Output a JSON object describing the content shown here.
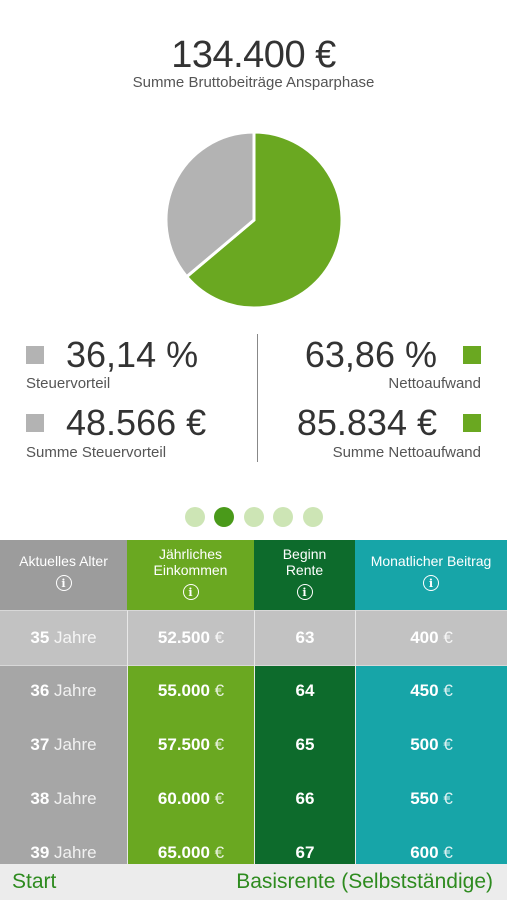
{
  "summary": {
    "total": "134.400 €",
    "total_caption": "Summe Bruttobeiträge Ansparphase"
  },
  "pie": {
    "slices": [
      {
        "label": "Steuervorteil",
        "percent": 36.14,
        "color": "#b3b3b3"
      },
      {
        "label": "Nettoaufwand",
        "percent": 63.86,
        "color": "#6aa821"
      }
    ]
  },
  "stats": {
    "left": {
      "percent": "36,14 %",
      "percent_label": "Steuervorteil",
      "amount": "48.566 €",
      "amount_label": "Summe Steuervorteil",
      "color": "#b3b3b3"
    },
    "right": {
      "percent": "63,86 %",
      "percent_label": "Nettoaufwand",
      "amount": "85.834 €",
      "amount_label": "Summe Nettoaufwand",
      "color": "#6aa821"
    }
  },
  "pager": {
    "count": 5,
    "active_index": 1,
    "active_color": "#4a9a1a",
    "inactive_color": "#cde5b5"
  },
  "table": {
    "columns": [
      {
        "header": "Aktuelles Alter",
        "color": "#a6a6a6",
        "header_color": "#9c9c9c",
        "highlight_color": "#c2c2c2"
      },
      {
        "header": "Jährliches\nEinkommen",
        "color": "#6aa821",
        "header_color": "#6aa821",
        "highlight_color": "#c2c2c2"
      },
      {
        "header": "Beginn\nRente",
        "color": "#0d6b2c",
        "header_color": "#0d6b2c",
        "highlight_color": "#c2c2c2"
      },
      {
        "header": "Monatlicher Beitrag",
        "color": "#17a5a8",
        "header_color": "#17a5a8",
        "highlight_color": "#c2c2c2"
      }
    ],
    "rows": [
      {
        "alter": "35",
        "alter_unit": "Jahre",
        "einkommen": "52.500",
        "einkommen_unit": "€",
        "rente": "63",
        "beitrag": "400",
        "beitrag_unit": "€"
      },
      {
        "alter": "36",
        "alter_unit": "Jahre",
        "einkommen": "55.000",
        "einkommen_unit": "€",
        "rente": "64",
        "beitrag": "450",
        "beitrag_unit": "€"
      },
      {
        "alter": "37",
        "alter_unit": "Jahre",
        "einkommen": "57.500",
        "einkommen_unit": "€",
        "rente": "65",
        "beitrag": "500",
        "beitrag_unit": "€"
      },
      {
        "alter": "38",
        "alter_unit": "Jahre",
        "einkommen": "60.000",
        "einkommen_unit": "€",
        "rente": "66",
        "beitrag": "550",
        "beitrag_unit": "€"
      },
      {
        "alter": "39",
        "alter_unit": "Jahre",
        "einkommen": "65.000",
        "einkommen_unit": "€",
        "rente": "67",
        "beitrag": "600",
        "beitrag_unit": "€"
      }
    ],
    "info_glyph": "i"
  },
  "bottom_bar": {
    "start_label": "Start",
    "plan_label": "Basisrente (Selbstständige)"
  }
}
